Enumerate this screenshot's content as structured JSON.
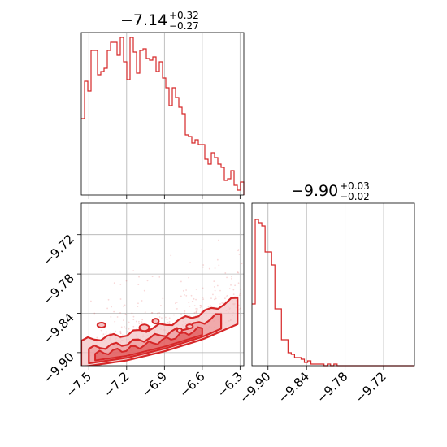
{
  "chart_data": [
    {
      "type": "histogram",
      "panel": "top-left",
      "title": "−7.14",
      "title_sup": "+0.32",
      "title_sub": "−0.27",
      "xlim": [
        -7.56,
        -6.27
      ],
      "grid": true,
      "color": "#d62728",
      "bin_start": -7.56,
      "bin_width": 0.0258,
      "values": [
        0.47,
        0.7,
        0.64,
        0.89,
        0.89,
        0.74,
        0.76,
        0.78,
        0.89,
        0.94,
        0.94,
        0.86,
        0.97,
        0.82,
        0.71,
        0.97,
        0.88,
        0.75,
        0.89,
        0.9,
        0.84,
        0.83,
        0.85,
        0.76,
        0.82,
        0.72,
        0.66,
        0.55,
        0.66,
        0.6,
        0.54,
        0.5,
        0.37,
        0.36,
        0.32,
        0.34,
        0.31,
        0.31,
        0.22,
        0.19,
        0.26,
        0.23,
        0.19,
        0.17,
        0.09,
        0.1,
        0.15,
        0.06,
        0.03,
        0.08,
        0.0
      ]
    },
    {
      "type": "scatter-contour",
      "panel": "bottom-left",
      "xlim": [
        -7.56,
        -6.27
      ],
      "ylim": [
        -9.92,
        -9.672
      ],
      "xticks": [
        "−7.5",
        "−7.2",
        "−6.9",
        "−6.6",
        "−6.3"
      ],
      "xtick_values": [
        -7.5,
        -7.2,
        -6.9,
        -6.6,
        -6.3
      ],
      "yticks": [
        "−9.72",
        "−9.78",
        "−9.84",
        "−9.90"
      ],
      "ytick_values": [
        -9.72,
        -9.78,
        -9.84,
        -9.9
      ],
      "grid": true,
      "color": "#d62728",
      "ridge": [
        [
          -7.56,
          -9.912
        ],
        [
          -7.2,
          -9.902
        ],
        [
          -6.9,
          -9.888
        ],
        [
          -6.6,
          -9.87
        ],
        [
          -6.3,
          -9.845
        ]
      ]
    },
    {
      "type": "histogram",
      "panel": "bottom-right",
      "title": "−9.90",
      "title_sup": "+0.03",
      "title_sub": "−0.02",
      "xlim": [
        -9.925,
        -9.672
      ],
      "xticks": [
        "−9.90",
        "−9.84",
        "−9.78",
        "−9.72"
      ],
      "xtick_values": [
        -9.9,
        -9.84,
        -9.78,
        -9.72
      ],
      "grid": true,
      "color": "#d62728",
      "bin_start": -9.925,
      "bin_width": 0.0051,
      "values": [
        0.38,
        0.9,
        0.88,
        0.86,
        0.7,
        0.7,
        0.62,
        0.35,
        0.35,
        0.16,
        0.16,
        0.08,
        0.07,
        0.05,
        0.05,
        0.04,
        0.02,
        0.03,
        0.01,
        0.01,
        0.01,
        0.01,
        0.0,
        0.01,
        0.0,
        0.01,
        0.0,
        0.0,
        0.0,
        0.0,
        0.0,
        0.0,
        0.0,
        0.0,
        0.0,
        0.0,
        0.0,
        0.0,
        0.0,
        0.0,
        0.0,
        0.0,
        0.0,
        0.0,
        0.0,
        0.0,
        0.0,
        0.0,
        0.0,
        0.0
      ]
    }
  ]
}
